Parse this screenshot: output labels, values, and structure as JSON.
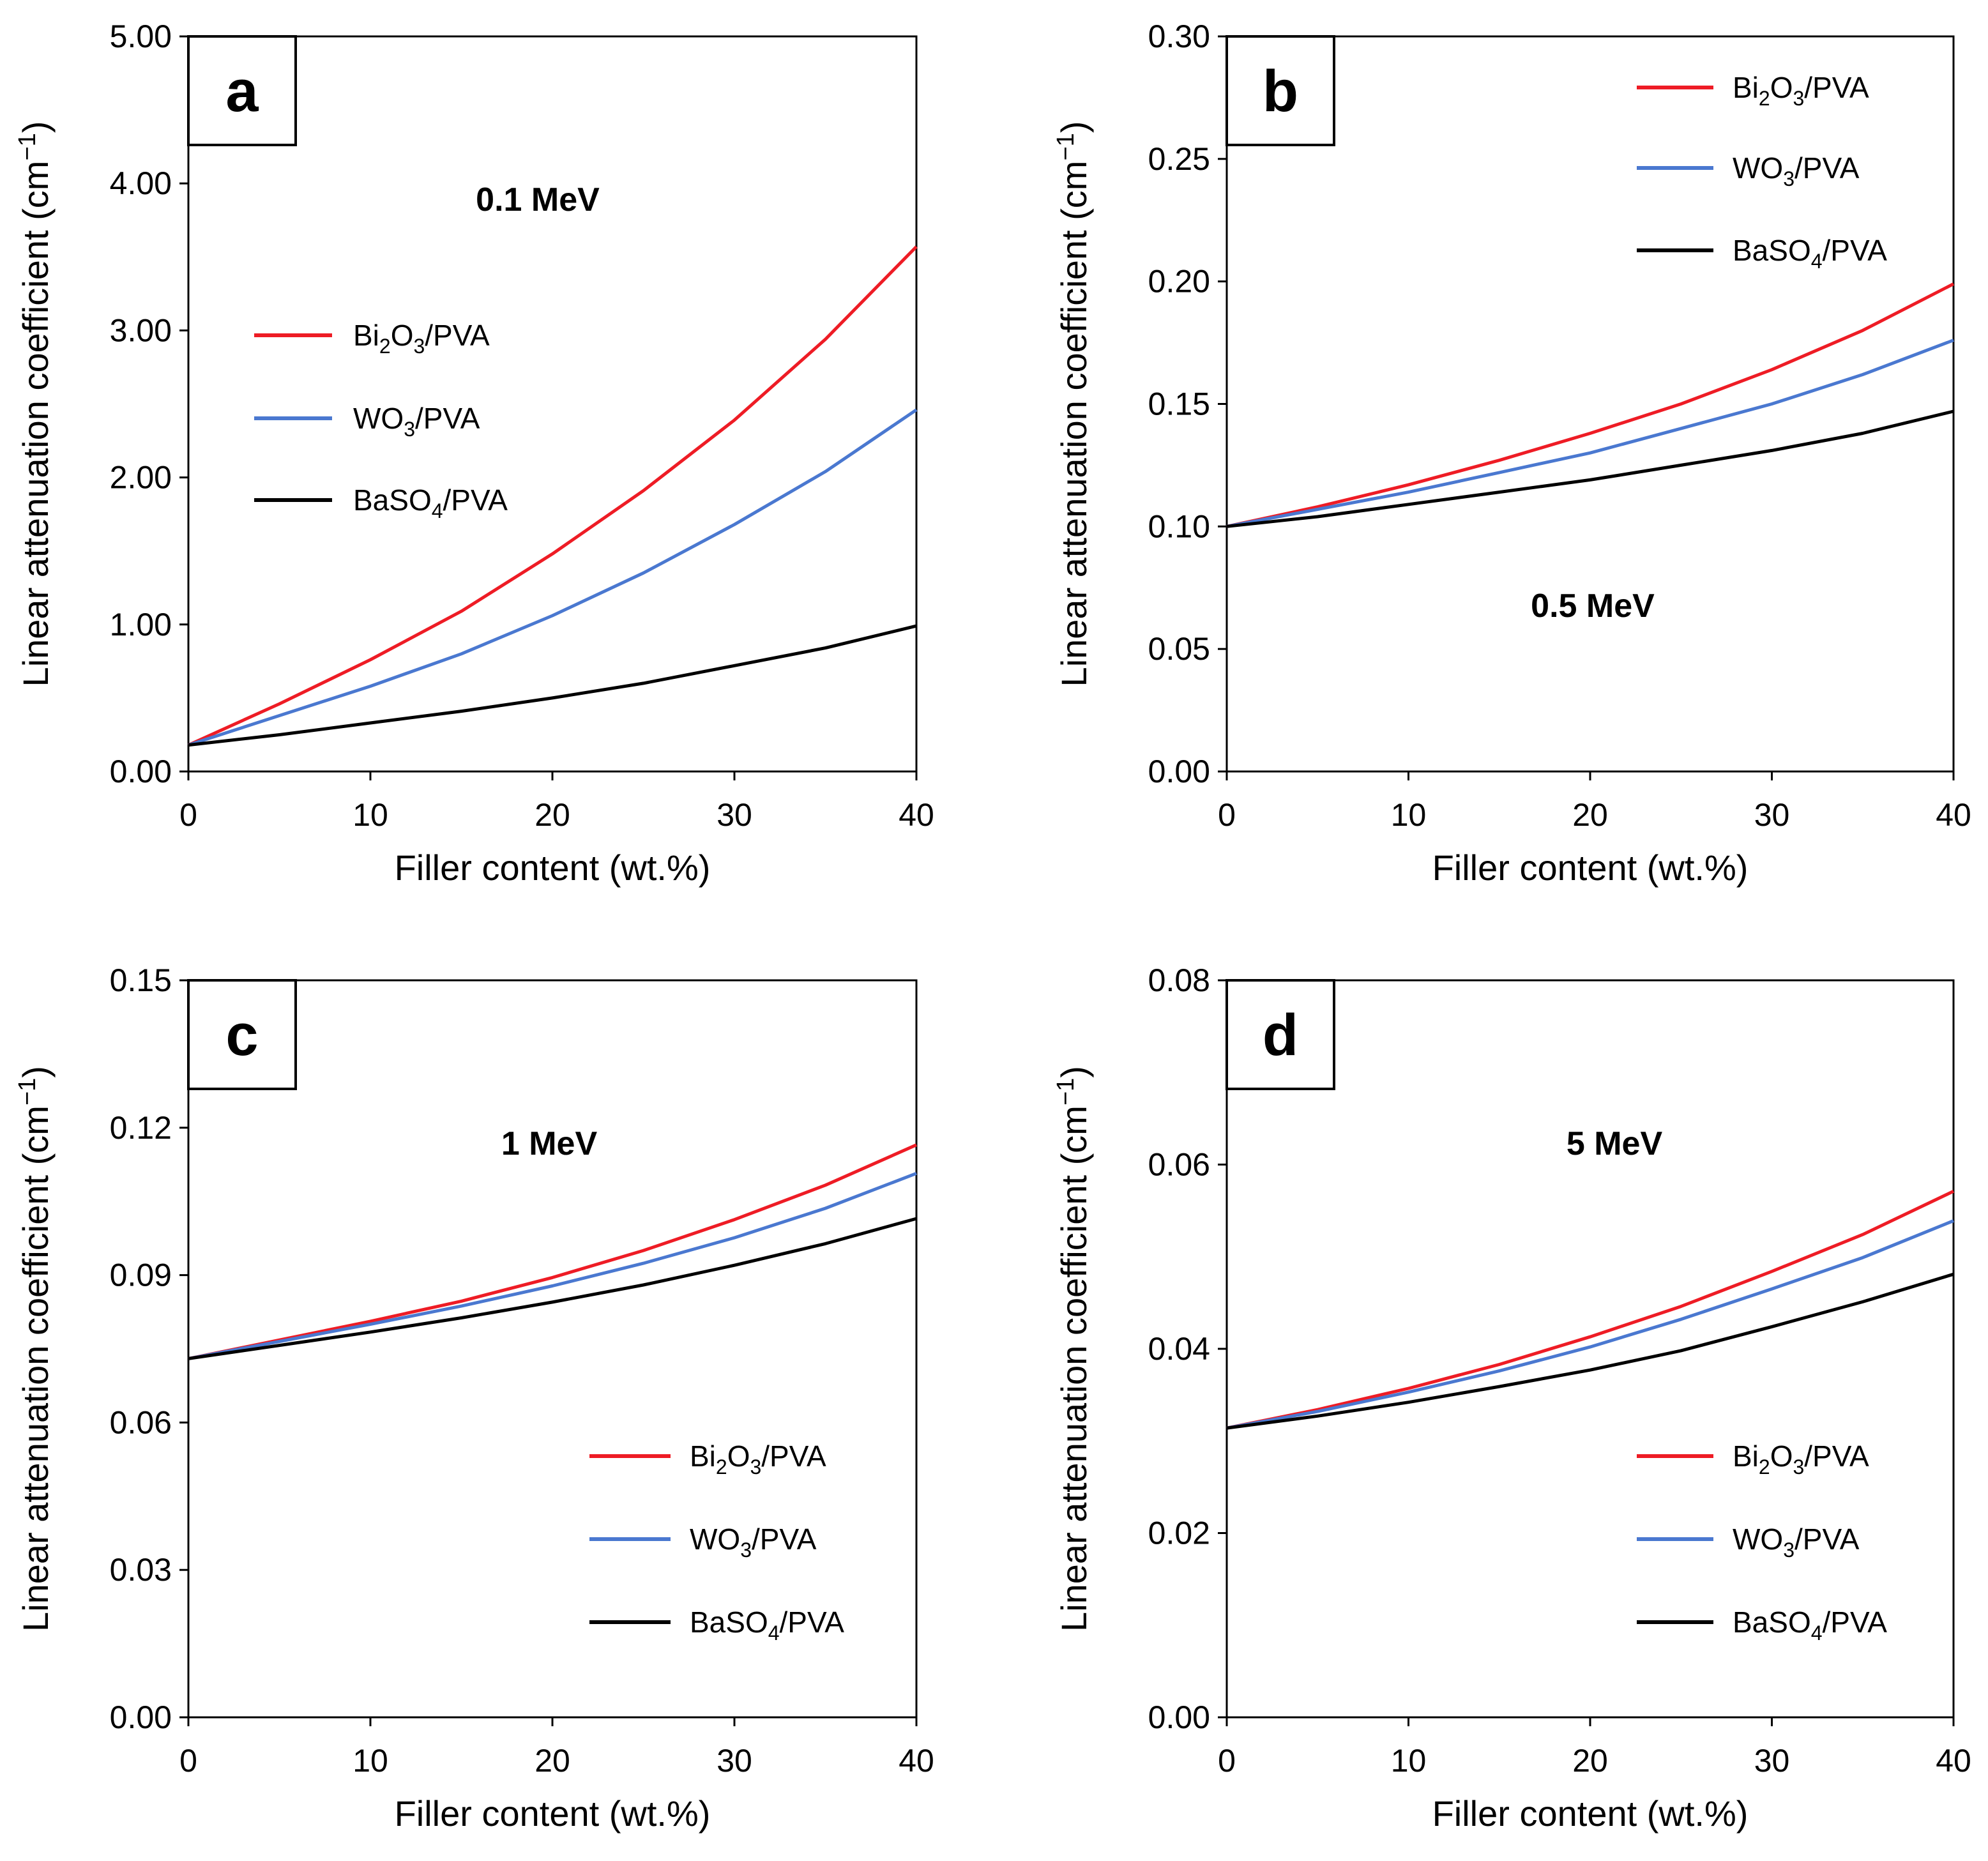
{
  "figure": {
    "x_axis_title": "Filler content (wt.%)",
    "y_axis_title": "Linear attenuation coefficient (cm",
    "y_axis_title_sup": "−1",
    "y_axis_title_end": ")"
  },
  "colors": {
    "bi2o3": "#ee1c25",
    "wo3": "#4a78d0",
    "baso4": "#000000"
  },
  "legend_entries": [
    {
      "key": "bi2o3",
      "pre": "Bi",
      "s1": "2",
      "mid": "O",
      "s2": "3",
      "post": "/PVA"
    },
    {
      "key": "wo3",
      "pre": "WO",
      "s1": "3",
      "mid": "",
      "s2": "",
      "post": "/PVA"
    },
    {
      "key": "baso4",
      "pre": "BaSO",
      "s1": "4",
      "mid": "",
      "s2": "",
      "post": "/PVA"
    }
  ],
  "chart_data": [
    {
      "type": "line",
      "panel": "a",
      "energy": "0.1 MeV",
      "xlabel": "Filler content (wt.%)",
      "ylabel": "Linear attenuation coefficient (cm−1)",
      "xlim": [
        0,
        40
      ],
      "ylim": [
        0,
        5
      ],
      "xticks": [
        0,
        10,
        20,
        30,
        40
      ],
      "xtick_labels": [
        "0",
        "10",
        "20",
        "30",
        "40"
      ],
      "yticks": [
        0,
        1,
        2,
        3,
        4,
        5
      ],
      "ytick_labels": [
        "0.00",
        "1.00",
        "2.00",
        "3.00",
        "4.00",
        "5.00"
      ],
      "legend_position": "middle-left",
      "x": [
        0,
        5,
        10,
        15,
        20,
        25,
        30,
        35,
        40
      ],
      "series": [
        {
          "name": "Bi2O3/PVA",
          "key": "bi2o3",
          "values": [
            0.18,
            0.46,
            0.76,
            1.09,
            1.48,
            1.91,
            2.39,
            2.94,
            3.57
          ]
        },
        {
          "name": "WO3/PVA",
          "key": "wo3",
          "values": [
            0.18,
            0.38,
            0.58,
            0.8,
            1.06,
            1.35,
            1.68,
            2.04,
            2.46
          ]
        },
        {
          "name": "BaSO4/PVA",
          "key": "baso4",
          "values": [
            0.18,
            0.25,
            0.33,
            0.41,
            0.5,
            0.6,
            0.72,
            0.84,
            0.99
          ]
        }
      ]
    },
    {
      "type": "line",
      "panel": "b",
      "energy": "0.5 MeV",
      "xlabel": "Filler content (wt.%)",
      "ylabel": "Linear attenuation coefficient (cm−1)",
      "xlim": [
        0,
        40
      ],
      "ylim": [
        0,
        0.3
      ],
      "xticks": [
        0,
        10,
        20,
        30,
        40
      ],
      "xtick_labels": [
        "0",
        "10",
        "20",
        "30",
        "40"
      ],
      "yticks": [
        0,
        0.05,
        0.1,
        0.15,
        0.2,
        0.25,
        0.3
      ],
      "ytick_labels": [
        "0.00",
        "0.05",
        "0.10",
        "0.15",
        "0.20",
        "0.25",
        "0.30"
      ],
      "legend_position": "top-right",
      "x": [
        0,
        5,
        10,
        15,
        20,
        25,
        30,
        35,
        40
      ],
      "series": [
        {
          "name": "Bi2O3/PVA",
          "key": "bi2o3",
          "values": [
            0.1,
            0.108,
            0.117,
            0.127,
            0.138,
            0.15,
            0.164,
            0.18,
            0.199
          ]
        },
        {
          "name": "WO3/PVA",
          "key": "wo3",
          "values": [
            0.1,
            0.107,
            0.114,
            0.122,
            0.13,
            0.14,
            0.15,
            0.162,
            0.176
          ]
        },
        {
          "name": "BaSO4/PVA",
          "key": "baso4",
          "values": [
            0.1,
            0.104,
            0.109,
            0.114,
            0.119,
            0.125,
            0.131,
            0.138,
            0.147
          ]
        }
      ]
    },
    {
      "type": "line",
      "panel": "c",
      "energy": "1 MeV",
      "xlabel": "Filler content (wt.%)",
      "ylabel": "Linear attenuation coefficient (cm−1)",
      "xlim": [
        0,
        40
      ],
      "ylim": [
        0,
        0.15
      ],
      "xticks": [
        0,
        10,
        20,
        30,
        40
      ],
      "xtick_labels": [
        "0",
        "10",
        "20",
        "30",
        "40"
      ],
      "yticks": [
        0,
        0.03,
        0.06,
        0.09,
        0.12,
        0.15
      ],
      "ytick_labels": [
        "0.00",
        "0.03",
        "0.06",
        "0.09",
        "0.12",
        "0.15"
      ],
      "legend_position": "bottom-right",
      "x": [
        0,
        5,
        10,
        15,
        20,
        25,
        30,
        35,
        40
      ],
      "series": [
        {
          "name": "Bi2O3/PVA",
          "key": "bi2o3",
          "values": [
            0.073,
            0.0768,
            0.0806,
            0.0847,
            0.0895,
            0.095,
            0.1013,
            0.1083,
            0.1165
          ]
        },
        {
          "name": "WO3/PVA",
          "key": "wo3",
          "values": [
            0.073,
            0.0765,
            0.08,
            0.0837,
            0.0878,
            0.0924,
            0.0976,
            0.1036,
            0.1107
          ]
        },
        {
          "name": "BaSO4/PVA",
          "key": "baso4",
          "values": [
            0.073,
            0.0757,
            0.0784,
            0.0813,
            0.0845,
            0.088,
            0.092,
            0.0964,
            0.1015
          ]
        }
      ]
    },
    {
      "type": "line",
      "panel": "d",
      "energy": "5 MeV",
      "xlabel": "Filler content (wt.%)",
      "ylabel": "Linear attenuation coefficient (cm−1)",
      "xlim": [
        0,
        40
      ],
      "ylim": [
        0,
        0.08
      ],
      "xticks": [
        0,
        10,
        20,
        30,
        40
      ],
      "xtick_labels": [
        "0",
        "10",
        "20",
        "30",
        "40"
      ],
      "yticks": [
        0,
        0.02,
        0.04,
        0.06,
        0.08
      ],
      "ytick_labels": [
        "0.00",
        "0.02",
        "0.04",
        "0.06",
        "0.08"
      ],
      "legend_position": "bottom-right",
      "x": [
        0,
        5,
        10,
        15,
        20,
        25,
        30,
        35,
        40
      ],
      "series": [
        {
          "name": "Bi2O3/PVA",
          "key": "bi2o3",
          "values": [
            0.0314,
            0.0334,
            0.0357,
            0.0383,
            0.0413,
            0.0446,
            0.0484,
            0.0524,
            0.0571
          ]
        },
        {
          "name": "WO3/PVA",
          "key": "wo3",
          "values": [
            0.0314,
            0.0332,
            0.0353,
            0.0376,
            0.0402,
            0.0432,
            0.0465,
            0.0499,
            0.0539
          ]
        },
        {
          "name": "BaSO4/PVA",
          "key": "baso4",
          "values": [
            0.0314,
            0.0327,
            0.0342,
            0.0359,
            0.0377,
            0.0398,
            0.0424,
            0.0451,
            0.0481
          ]
        }
      ]
    }
  ]
}
